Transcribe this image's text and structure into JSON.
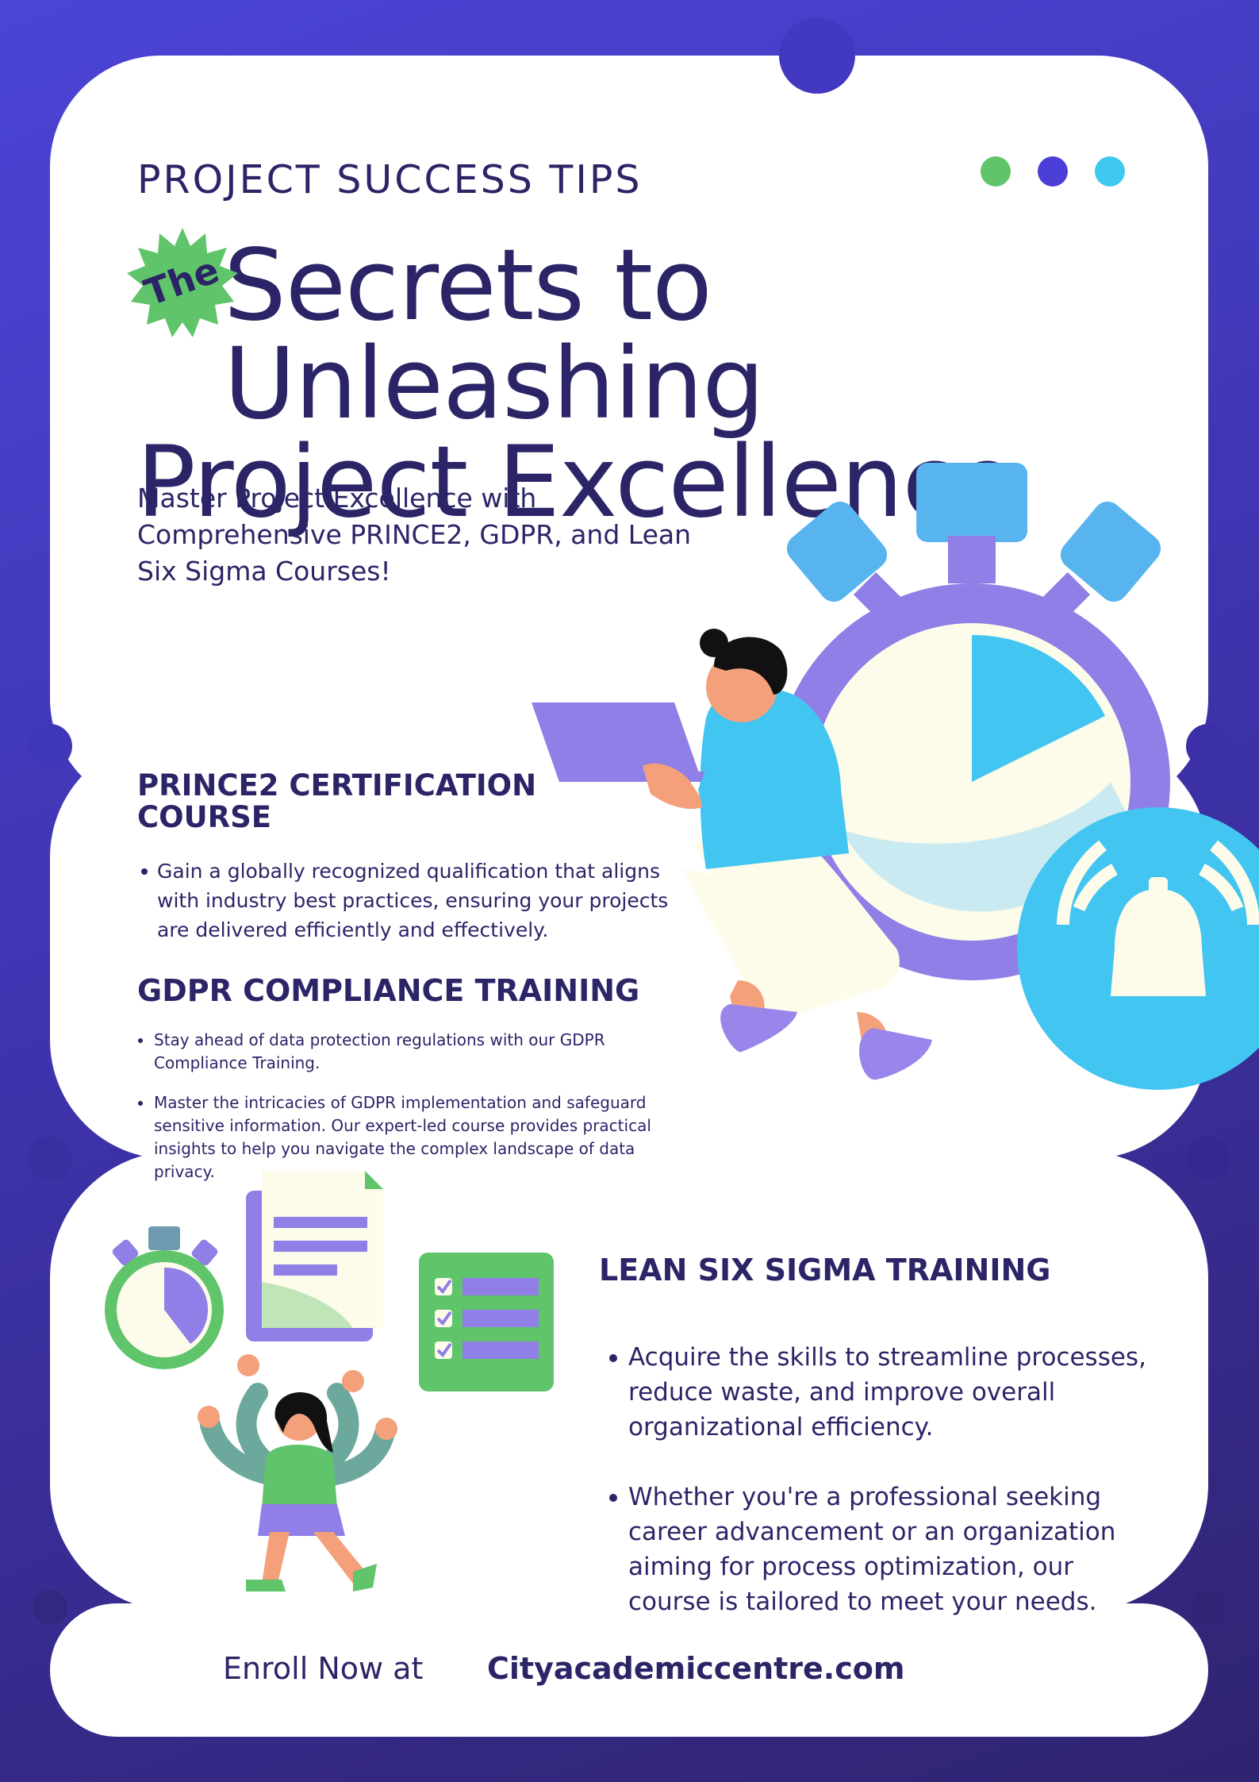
{
  "header": {
    "eyebrow": "PROJECT SUCCESS TIPS",
    "dots": [
      "#5fc46a",
      "#4b3fd8",
      "#3ec8f0"
    ]
  },
  "title": {
    "badge": "The",
    "line1": "Secrets to Unleashing",
    "line2": "Project Excellence"
  },
  "subtitle": "Master Project Excellence with Comprehensive PRINCE2, GDPR, and Lean Six Sigma Courses!",
  "prince2": {
    "heading_line1": "PRINCE2 CERTIFICATION",
    "heading_line2": "COURSE",
    "bullets": [
      "Gain a globally recognized qualification that aligns with industry best practices, ensuring your projects are delivered efficiently and effectively."
    ]
  },
  "gdpr": {
    "heading": "GDPR COMPLIANCE TRAINING",
    "bullets": [
      "Stay ahead of data protection regulations with our GDPR Compliance Training.",
      "Master the intricacies of GDPR implementation and safeguard sensitive information. Our expert-led course provides practical insights to help you navigate the complex landscape of data privacy."
    ]
  },
  "lean": {
    "heading": "LEAN SIX SIGMA TRAINING",
    "bullets": [
      "Acquire the skills to streamline processes, reduce waste, and improve overall organizational efficiency.",
      "Whether you're a professional seeking career advancement or an organization aiming for process optimization, our course is tailored to meet your needs."
    ]
  },
  "footer": {
    "enroll_label": "Enroll Now at",
    "url": "Cityacademiccentre.com"
  },
  "colors": {
    "navy": "#2b2567",
    "green": "#5fc46a",
    "purple": "#8f7fe6",
    "sky": "#43c5f1",
    "cream": "#fdfbea"
  },
  "illustrations": [
    "stopwatch-illustration",
    "man-with-laptop-illustration",
    "bell-icon",
    "stopwatch-icon",
    "document-icon",
    "checklist-icon",
    "woman-multitasking-illustration"
  ]
}
